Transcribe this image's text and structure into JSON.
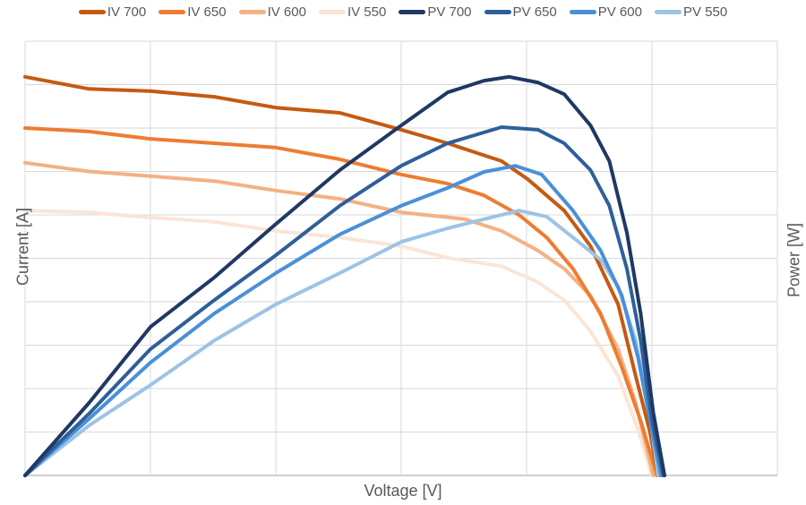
{
  "chart_data": {
    "type": "line",
    "title": "",
    "xlabel": "Voltage [V]",
    "ylabel": "Current [A]",
    "y2label": "Power [W]",
    "tick_labels_shown": false,
    "xlim": [
      0,
      6
    ],
    "ylim": [
      0,
      10
    ],
    "grid": true,
    "legend": "top",
    "series": [
      {
        "name": "IV 700",
        "color": "#C55A11",
        "axis": "left",
        "points": [
          [
            0,
            9.18
          ],
          [
            0.51,
            8.9
          ],
          [
            1,
            8.85
          ],
          [
            1.51,
            8.72
          ],
          [
            2,
            8.47
          ],
          [
            2.51,
            8.35
          ],
          [
            3,
            7.96
          ],
          [
            3.37,
            7.65
          ],
          [
            3.8,
            7.24
          ],
          [
            4.01,
            6.82
          ],
          [
            4.3,
            6.1
          ],
          [
            4.51,
            5.28
          ],
          [
            4.73,
            3.94
          ],
          [
            4.87,
            2.29
          ],
          [
            4.98,
            1.05
          ],
          [
            5.05,
            0
          ]
        ]
      },
      {
        "name": "IV 650",
        "color": "#ED7D31",
        "axis": "left",
        "points": [
          [
            0,
            8.0
          ],
          [
            0.51,
            7.92
          ],
          [
            1,
            7.75
          ],
          [
            1.51,
            7.65
          ],
          [
            2,
            7.55
          ],
          [
            2.51,
            7.28
          ],
          [
            3,
            6.93
          ],
          [
            3.37,
            6.72
          ],
          [
            3.66,
            6.45
          ],
          [
            3.94,
            6.0
          ],
          [
            4.16,
            5.48
          ],
          [
            4.37,
            4.76
          ],
          [
            4.59,
            3.73
          ],
          [
            4.76,
            2.49
          ],
          [
            4.91,
            1.26
          ],
          [
            5.04,
            0
          ]
        ]
      },
      {
        "name": "IV 600",
        "color": "#F4B183",
        "axis": "left",
        "points": [
          [
            0,
            7.2
          ],
          [
            0.51,
            7.0
          ],
          [
            1,
            6.89
          ],
          [
            1.51,
            6.78
          ],
          [
            2,
            6.56
          ],
          [
            2.51,
            6.37
          ],
          [
            3,
            6.06
          ],
          [
            3.51,
            5.9
          ],
          [
            3.8,
            5.63
          ],
          [
            4.09,
            5.18
          ],
          [
            4.3,
            4.76
          ],
          [
            4.51,
            4.14
          ],
          [
            4.73,
            2.91
          ],
          [
            4.87,
            1.67
          ],
          [
            5.01,
            0
          ]
        ]
      },
      {
        "name": "IV 550",
        "color": "#FBE5D6",
        "axis": "left",
        "points": [
          [
            0,
            6.1
          ],
          [
            0.51,
            6.06
          ],
          [
            1,
            5.94
          ],
          [
            1.51,
            5.84
          ],
          [
            2,
            5.63
          ],
          [
            2.51,
            5.48
          ],
          [
            3,
            5.28
          ],
          [
            3.37,
            5.01
          ],
          [
            3.8,
            4.82
          ],
          [
            4.09,
            4.45
          ],
          [
            4.3,
            4.04
          ],
          [
            4.51,
            3.32
          ],
          [
            4.73,
            2.29
          ],
          [
            4.89,
            1.05
          ],
          [
            5.0,
            0
          ]
        ]
      },
      {
        "name": "PV 700",
        "color": "#1F3864",
        "axis": "right",
        "points": [
          [
            0,
            0
          ],
          [
            0.51,
            1.67
          ],
          [
            1,
            3.42
          ],
          [
            1.51,
            4.56
          ],
          [
            2,
            5.79
          ],
          [
            2.51,
            7.03
          ],
          [
            3,
            8.06
          ],
          [
            3.37,
            8.82
          ],
          [
            3.66,
            9.09
          ],
          [
            3.86,
            9.18
          ],
          [
            4.09,
            9.05
          ],
          [
            4.3,
            8.78
          ],
          [
            4.51,
            8.06
          ],
          [
            4.66,
            7.24
          ],
          [
            4.8,
            5.59
          ],
          [
            4.91,
            3.73
          ],
          [
            5.01,
            1.46
          ],
          [
            5.1,
            0
          ]
        ]
      },
      {
        "name": "PV 650",
        "color": "#2E5F9A",
        "axis": "right",
        "points": [
          [
            0,
            0
          ],
          [
            0.51,
            1.42
          ],
          [
            1,
            2.91
          ],
          [
            1.51,
            4.04
          ],
          [
            2,
            5.07
          ],
          [
            2.51,
            6.21
          ],
          [
            3,
            7.13
          ],
          [
            3.37,
            7.65
          ],
          [
            3.8,
            8.02
          ],
          [
            4.09,
            7.96
          ],
          [
            4.3,
            7.65
          ],
          [
            4.51,
            7.03
          ],
          [
            4.66,
            6.21
          ],
          [
            4.8,
            4.76
          ],
          [
            4.91,
            3.11
          ],
          [
            5.0,
            1.26
          ],
          [
            5.09,
            0
          ]
        ]
      },
      {
        "name": "PV 600",
        "color": "#4A90D9",
        "axis": "right",
        "points": [
          [
            0,
            0
          ],
          [
            0.51,
            1.3
          ],
          [
            1,
            2.6
          ],
          [
            1.51,
            3.73
          ],
          [
            2,
            4.66
          ],
          [
            2.51,
            5.55
          ],
          [
            3,
            6.21
          ],
          [
            3.37,
            6.62
          ],
          [
            3.66,
            6.99
          ],
          [
            3.91,
            7.13
          ],
          [
            4.12,
            6.93
          ],
          [
            4.37,
            6.1
          ],
          [
            4.59,
            5.18
          ],
          [
            4.76,
            4.14
          ],
          [
            4.89,
            2.7
          ],
          [
            5.0,
            1.05
          ],
          [
            5.07,
            0
          ]
        ]
      },
      {
        "name": "PV 550",
        "color": "#9DC3E6",
        "axis": "right",
        "points": [
          [
            0,
            0
          ],
          [
            0.51,
            1.15
          ],
          [
            1,
            2.08
          ],
          [
            1.51,
            3.11
          ],
          [
            2,
            3.94
          ],
          [
            2.51,
            4.66
          ],
          [
            3,
            5.38
          ],
          [
            3.37,
            5.69
          ],
          [
            3.66,
            5.9
          ],
          [
            3.94,
            6.1
          ],
          [
            4.16,
            5.96
          ],
          [
            4.37,
            5.48
          ],
          [
            4.59,
            4.97
          ],
          [
            4.73,
            4.35
          ],
          [
            4.87,
            3.11
          ],
          [
            4.98,
            1.46
          ],
          [
            5.05,
            0
          ]
        ]
      }
    ]
  }
}
